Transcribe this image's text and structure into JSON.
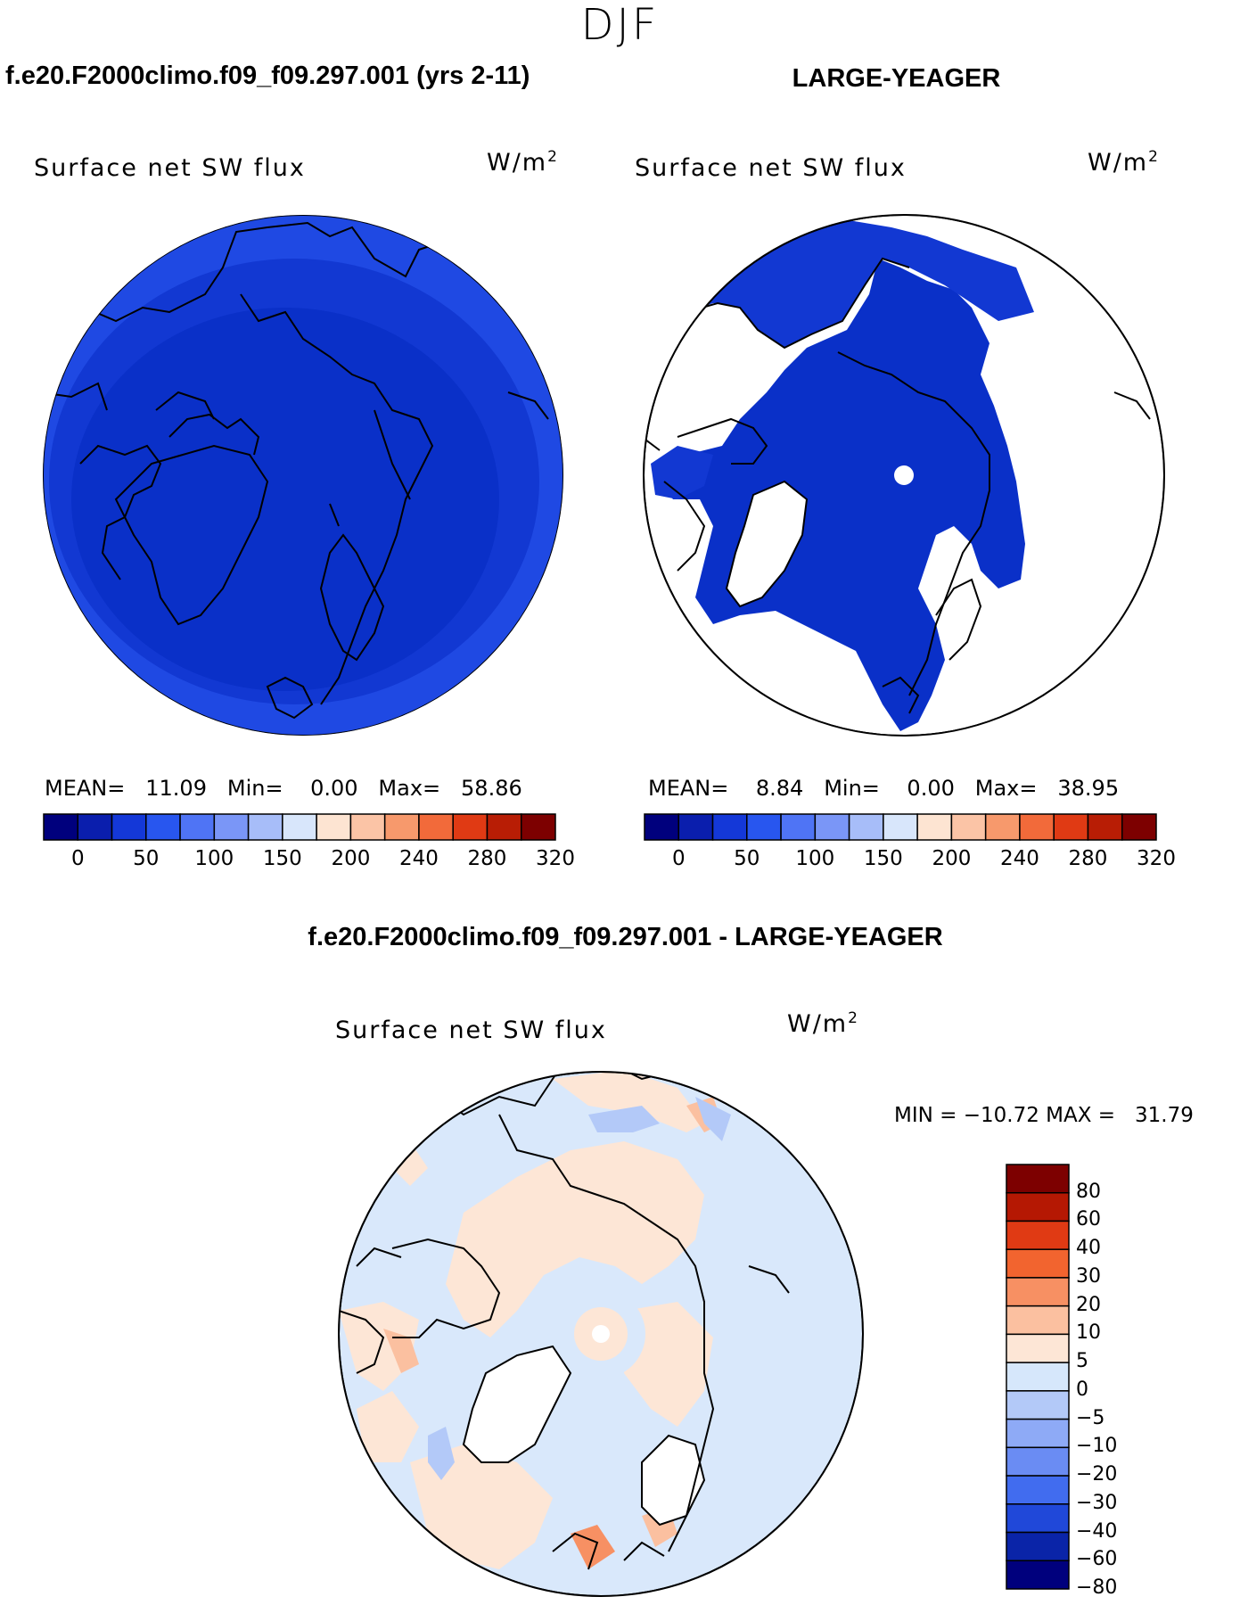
{
  "season": "DJF",
  "panels": [
    {
      "case_title": "f.e20.F2000climo.f09_f09.297.001 (yrs 2-11)",
      "variable": "Surface net SW flux",
      "units": "W/m",
      "units_exp": "2",
      "stats": {
        "mean_label": "MEAN=",
        "mean": "11.09",
        "min_label": "Min=",
        "min": "0.00",
        "max_label": "Max=",
        "max": "58.86"
      }
    },
    {
      "case_title": "LARGE-YEAGER",
      "variable": "Surface net SW flux",
      "units": "W/m",
      "units_exp": "2",
      "stats": {
        "mean_label": "MEAN=",
        "mean": "8.84",
        "min_label": "Min=",
        "min": "0.00",
        "max_label": "Max=",
        "max": "38.95"
      }
    }
  ],
  "abs_colorbar": {
    "colors": [
      "#00007d",
      "#0a1ead",
      "#1438d8",
      "#2856ef",
      "#4f74f5",
      "#7a96f7",
      "#a7bdf9",
      "#d8e6fb",
      "#fde4d2",
      "#fbc4a6",
      "#f7996c",
      "#f26a3a",
      "#e03a14",
      "#b81d05",
      "#7d0000"
    ],
    "tick_labels": [
      "0",
      "50",
      "100",
      "150",
      "200",
      "240",
      "280",
      "320"
    ]
  },
  "diff_panel": {
    "title": "f.e20.F2000climo.f09_f09.297.001 - LARGE-YEAGER",
    "variable": "Surface net SW flux",
    "units": "W/m",
    "units_exp": "2",
    "stats": "MIN = −10.72 MAX =   31.79"
  },
  "diff_colorbar": {
    "colors": [
      "#7d0000",
      "#b51803",
      "#e03a14",
      "#f2642f",
      "#f79063",
      "#fbc0a0",
      "#fde6d6",
      "#d6e7fb",
      "#b3c9f8",
      "#8eaaf6",
      "#6a8cf3",
      "#416cef",
      "#2048d9",
      "#0a24a8",
      "#00007d"
    ],
    "tick_labels": [
      "80",
      "60",
      "40",
      "30",
      "20",
      "10",
      "5",
      "0",
      "−5",
      "−10",
      "−20",
      "−30",
      "−40",
      "−60",
      "−80"
    ]
  }
}
